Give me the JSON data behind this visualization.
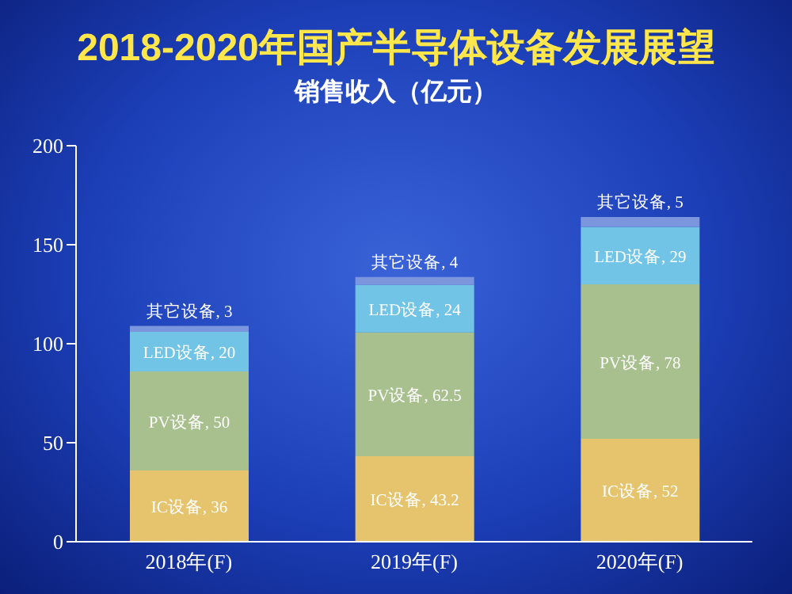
{
  "chart_data": {
    "type": "bar",
    "title": "2018-2020年国产半导体设备发展展望",
    "subtitle": "销售收入（亿元）",
    "categories": [
      "2018年(F)",
      "2019年(F)",
      "2020年(F)"
    ],
    "stacked": true,
    "ylim": [
      0,
      200
    ],
    "yticks": [
      0,
      50,
      100,
      150,
      200
    ],
    "grid": false,
    "legend": false,
    "series": [
      {
        "color": "#e6c46e",
        "values": [
          36,
          43.2,
          52
        ],
        "value_labels": [
          "IC设备, 36",
          "IC设备, 43.2",
          "IC设备, 52"
        ]
      },
      {
        "color": "#a8bf8e",
        "values": [
          50,
          62.5,
          78
        ],
        "value_labels": [
          "PV设备, 50",
          "PV设备, 62.5",
          "PV设备, 78"
        ]
      },
      {
        "color": "#72c4e6",
        "values": [
          20,
          24,
          29
        ],
        "value_labels": [
          "LED设备, 20",
          "LED设备, 24",
          "LED设备, 29"
        ]
      },
      {
        "color": "#7b96dc",
        "values": [
          3,
          4,
          5
        ],
        "value_labels": [
          "其它设备, 3",
          "其它设备, 4",
          "其它设备, 5"
        ]
      }
    ]
  }
}
